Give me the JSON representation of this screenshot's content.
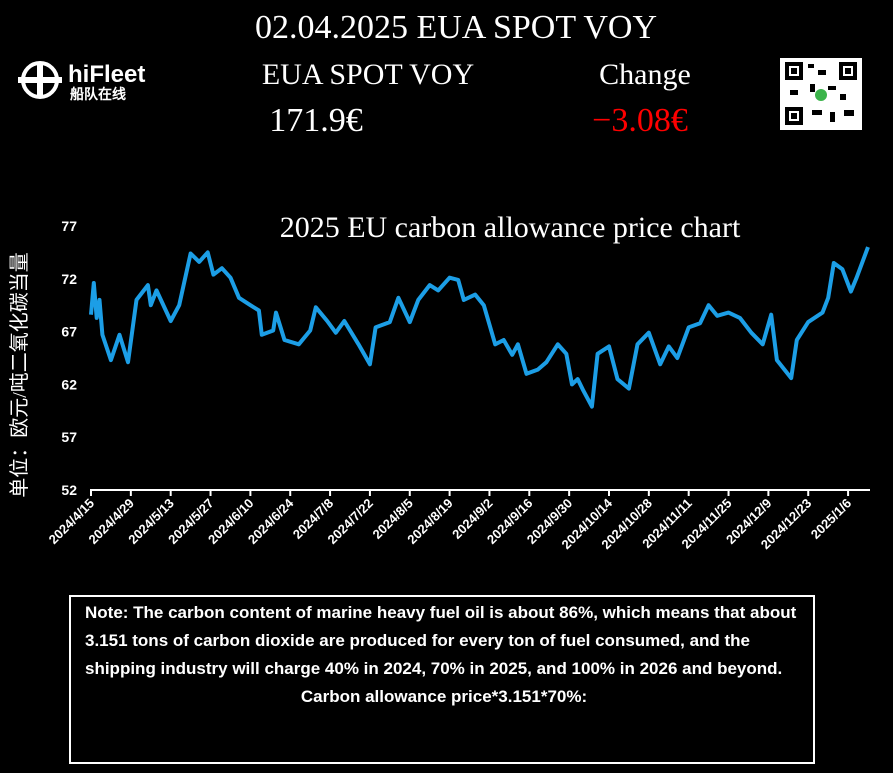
{
  "header": {
    "title": "02.04.2025 EUA SPOT VOY",
    "instrument": "EUA SPOT VOY",
    "change_label": "Change",
    "price": "171.9€",
    "change": "−3.08€"
  },
  "logo": {
    "name": "hiFleet",
    "subtitle": "船队在线"
  },
  "chart_data": {
    "type": "line",
    "title": "2025 EU carbon allowance price chart",
    "y_label": "单位：欧元/吨二氧化碳当量",
    "color": "#1c9ee6",
    "x": [
      "2024/4/15",
      "2024/4/16",
      "2024/4/17",
      "2024/4/18",
      "2024/4/19",
      "2024/4/22",
      "2024/4/25",
      "2024/4/28",
      "2024/5/1",
      "2024/5/5",
      "2024/5/6",
      "2024/5/8",
      "2024/5/13",
      "2024/5/16",
      "2024/5/20",
      "2024/5/23",
      "2024/5/26",
      "2024/5/28",
      "2024/5/31",
      "2024/6/3",
      "2024/6/6",
      "2024/6/10",
      "2024/6/13",
      "2024/6/14",
      "2024/6/18",
      "2024/6/19",
      "2024/6/22",
      "2024/6/27",
      "2024/7/1",
      "2024/7/3",
      "2024/7/7",
      "2024/7/10",
      "2024/7/13",
      "2024/7/18",
      "2024/7/22",
      "2024/7/24",
      "2024/7/29",
      "2024/8/1",
      "2024/8/5",
      "2024/8/8",
      "2024/8/12",
      "2024/8/15",
      "2024/8/19",
      "2024/8/22",
      "2024/8/24",
      "2024/8/28",
      "2024/8/31",
      "2024/9/4",
      "2024/9/7",
      "2024/9/10",
      "2024/9/12",
      "2024/9/15",
      "2024/9/19",
      "2024/9/22",
      "2024/9/26",
      "2024/9/29",
      "2024/10/1",
      "2024/10/3",
      "2024/10/5",
      "2024/10/8",
      "2024/10/10",
      "2024/10/14",
      "2024/10/17",
      "2024/10/21",
      "2024/10/24",
      "2024/10/28",
      "2024/11/1",
      "2024/11/4",
      "2024/11/7",
      "2024/11/11",
      "2024/11/15",
      "2024/11/18",
      "2024/11/21",
      "2024/11/25",
      "2024/11/29",
      "2024/12/3",
      "2024/12/7",
      "2024/12/10",
      "2024/12/12",
      "2024/12/17",
      "2024/12/19",
      "2024/12/23",
      "2024/12/28",
      "2024/12/30",
      "2025/1/1",
      "2025/1/4",
      "2025/1/7",
      "2025/1/9",
      "2025/1/13"
    ],
    "values": [
      68.6,
      71.6,
      68.3,
      70.0,
      66.7,
      64.3,
      66.7,
      64.1,
      70.0,
      71.4,
      69.5,
      70.9,
      68.0,
      69.5,
      74.4,
      73.6,
      74.5,
      72.4,
      73.0,
      72.1,
      70.2,
      69.5,
      69.0,
      66.7,
      67.1,
      68.8,
      66.2,
      65.8,
      67.1,
      69.3,
      68.0,
      66.9,
      68.0,
      65.8,
      63.9,
      67.4,
      67.9,
      70.2,
      67.9,
      70.0,
      71.4,
      70.9,
      72.1,
      71.9,
      70.0,
      70.5,
      69.5,
      65.8,
      66.2,
      64.8,
      65.8,
      63.0,
      63.4,
      64.1,
      65.8,
      64.9,
      62.0,
      62.5,
      61.4,
      59.9,
      64.9,
      65.6,
      62.5,
      61.6,
      65.8,
      66.9,
      63.9,
      65.6,
      64.5,
      67.4,
      67.8,
      69.5,
      68.5,
      68.8,
      68.3,
      66.9,
      65.8,
      68.6,
      64.3,
      62.6,
      66.2,
      67.9,
      68.8,
      70.2,
      73.5,
      72.9,
      70.8,
      72.1,
      75.0
    ],
    "xlim": [
      "2024/4/15",
      "2025/1/13"
    ],
    "xticks": [
      "2024/4/15",
      "2024/4/29",
      "2024/5/13",
      "2024/5/27",
      "2024/6/10",
      "2024/6/24",
      "2024/7/8",
      "2024/7/22",
      "2024/8/5",
      "2024/8/19",
      "2024/9/2",
      "2024/9/16",
      "2024/9/30",
      "2024/10/14",
      "2024/10/28",
      "2024/11/11",
      "2024/11/25",
      "2024/12/9",
      "2024/12/23",
      "2025/1/6"
    ],
    "ylim": [
      52,
      77
    ],
    "yticks": [
      52,
      57,
      62,
      67,
      72,
      77
    ]
  },
  "note": {
    "text": "Note: The carbon content of marine heavy fuel oil is about 86%, which means that about 3.151 tons of carbon dioxide are produced for every ton of fuel consumed, and the shipping industry will charge 40% in 2024, 70% in 2025, and 100% in 2026 and beyond.",
    "formula": "Carbon allowance price*3.151*70%:"
  }
}
